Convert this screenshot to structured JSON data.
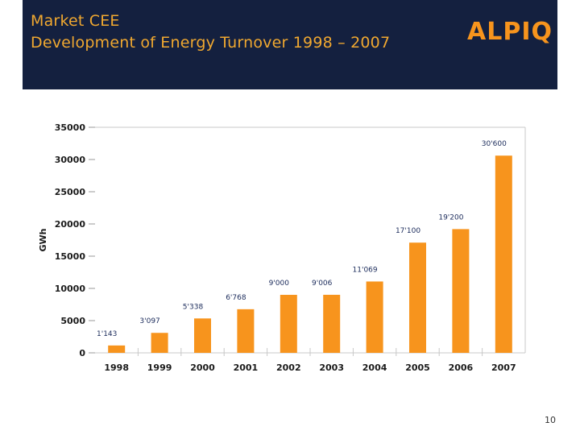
{
  "header": {
    "title_line1": "Market CEE",
    "title_line2": "Development of Energy Turnover 1998 – 2007",
    "logo": "ALPIQ",
    "background": "#14203f",
    "title_color": "#f0a830",
    "logo_color": "#f7941d"
  },
  "page_number": "10",
  "chart_data": {
    "type": "bar",
    "title": "Development of Energy Turnover 1998 – 2007",
    "xlabel": "",
    "ylabel": "GWh",
    "ylim": [
      0,
      35000
    ],
    "yticks": [
      0,
      5000,
      10000,
      15000,
      20000,
      25000,
      30000,
      35000
    ],
    "ytick_labels": [
      "0",
      "5000",
      "10000",
      "15000",
      "20000",
      "25000",
      "30000",
      "35000"
    ],
    "categories": [
      "1998",
      "1999",
      "2000",
      "2001",
      "2002",
      "2003",
      "2004",
      "2005",
      "2006",
      "2007"
    ],
    "values": [
      1143,
      3097,
      5338,
      6768,
      9000,
      9006,
      11069,
      17100,
      19200,
      30600
    ],
    "data_labels": [
      "1'143",
      "3'097",
      "5'338",
      "6'768",
      "9'000",
      "9'006",
      "11'069",
      "17'100",
      "19'200",
      "30'600"
    ],
    "bar_color": "#f7941d",
    "label_color": "#1a2a5a",
    "grid": false
  }
}
